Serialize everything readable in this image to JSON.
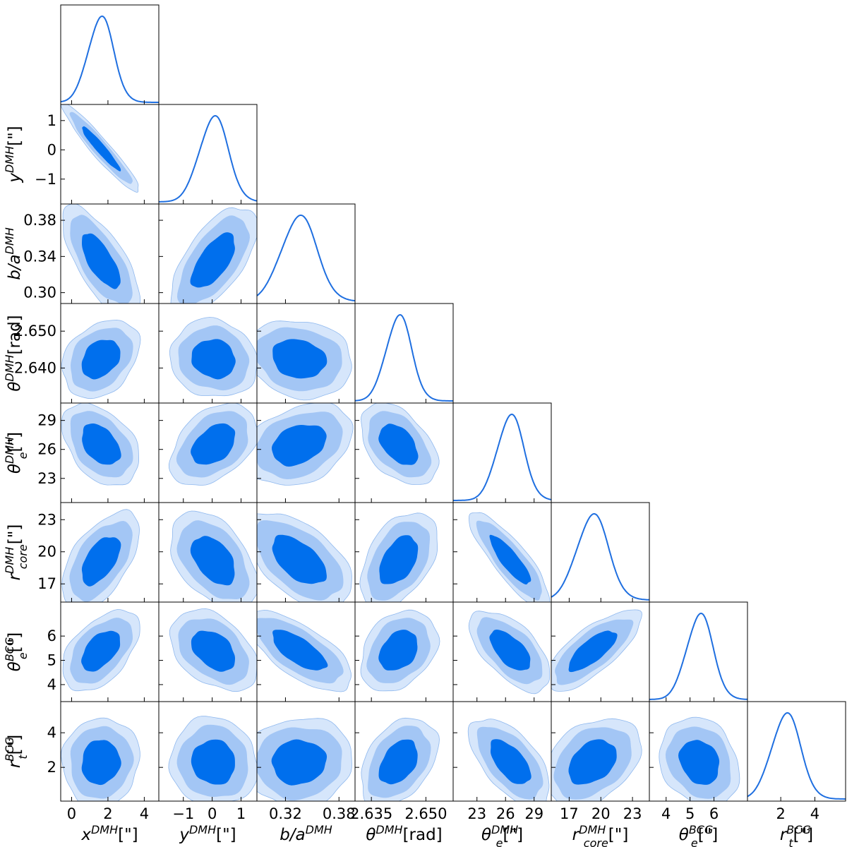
{
  "chart_data": {
    "type": "corner",
    "colors": {
      "c68": "#006fed",
      "c95": "#a3c6f5",
      "c99": "#d6e6fb",
      "line": "#1f6fe0"
    },
    "params": [
      {
        "key": "x",
        "sym": "x",
        "sup": "DMH",
        "sub": "",
        "unit": "[\"]",
        "range": [
          -0.6,
          4.8
        ],
        "ticks": [
          0,
          2,
          4
        ],
        "tick_labels": [
          "0",
          "2",
          "4"
        ],
        "mean": 1.6,
        "sd": 0.7
      },
      {
        "key": "y",
        "sym": "y",
        "sup": "DMH",
        "sub": "",
        "unit": "[\"]",
        "range": [
          -1.85,
          1.55
        ],
        "ticks": [
          -1,
          0,
          1
        ],
        "tick_labels": [
          "−1",
          "0",
          "1"
        ],
        "mean": 0.05,
        "sd": 0.5
      },
      {
        "key": "ba",
        "sym": "b/a",
        "sup": "DMH",
        "sub": "",
        "unit": "",
        "range": [
          0.288,
          0.398
        ],
        "ticks": [
          0.3,
          0.34,
          0.38
        ],
        "tick_labels": [
          "0.30",
          "0.34",
          "0.38"
        ],
        "ticks_x": [
          0.32,
          0.38
        ],
        "tick_labels_x": [
          "0.32",
          "0.38"
        ],
        "mean": 0.335,
        "sd": 0.02
      },
      {
        "key": "th",
        "sym": "θ",
        "sup": "DMH",
        "sub": "",
        "unit": "[rad]",
        "range": [
          2.6305,
          2.6575
        ],
        "ticks": [
          2.64,
          2.65
        ],
        "tick_labels": [
          "2.640",
          "2.650"
        ],
        "ticks_x": [
          2.635,
          2.65
        ],
        "tick_labels_x": [
          "2.635",
          "2.650"
        ],
        "mean": 2.6425,
        "sd": 0.0035
      },
      {
        "key": "te",
        "sym": "θ",
        "sup": "DMH",
        "sub": "e",
        "unit": "[\"]",
        "range": [
          20.5,
          30.8
        ],
        "ticks": [
          23,
          26,
          29
        ],
        "tick_labels": [
          "23",
          "26",
          "29"
        ],
        "mean": 26.5,
        "sd": 1.4
      },
      {
        "key": "rc",
        "sym": "r",
        "sup": "DMH",
        "sub": "core",
        "unit": "[\"]",
        "range": [
          15.3,
          24.6
        ],
        "ticks": [
          17,
          20,
          23
        ],
        "tick_labels": [
          "17",
          "20",
          "23"
        ],
        "mean": 19.2,
        "sd": 1.5
      },
      {
        "key": "tb",
        "sym": "θ",
        "sup": "BCG",
        "sub": "e",
        "unit": "[\"]",
        "range": [
          3.3,
          7.4
        ],
        "ticks": [
          4,
          5,
          6
        ],
        "tick_labels": [
          "4",
          "5",
          "6"
        ],
        "mean": 5.4,
        "sd": 0.55
      },
      {
        "key": "rt",
        "sym": "r",
        "sup": "BCG",
        "sub": "t",
        "unit": "[\"]",
        "range": [
          0.05,
          5.8
        ],
        "ticks": [
          2,
          4
        ],
        "tick_labels": [
          "2",
          "4"
        ],
        "mean": 2.3,
        "sd": 0.85
      }
    ],
    "correlations": {
      "1-0": -0.95,
      "2-0": -0.7,
      "2-1": 0.65,
      "3-0": 0.3,
      "3-1": -0.1,
      "3-2": -0.15,
      "4-0": -0.4,
      "4-1": 0.4,
      "4-2": 0.3,
      "4-3": -0.45,
      "5-0": 0.55,
      "5-1": -0.45,
      "5-2": -0.55,
      "5-3": 0.45,
      "5-4": -0.85,
      "6-0": 0.5,
      "6-1": -0.4,
      "6-2": -0.7,
      "6-3": 0.3,
      "6-4": -0.6,
      "6-5": 0.75,
      "7-0": 0.05,
      "7-1": -0.05,
      "7-2": 0.05,
      "7-3": 0.4,
      "7-4": -0.6,
      "7-5": 0.35,
      "7-6": -0.2
    },
    "levels": [
      "68%",
      "95%",
      "99%"
    ],
    "grid": false,
    "legend": "none"
  }
}
